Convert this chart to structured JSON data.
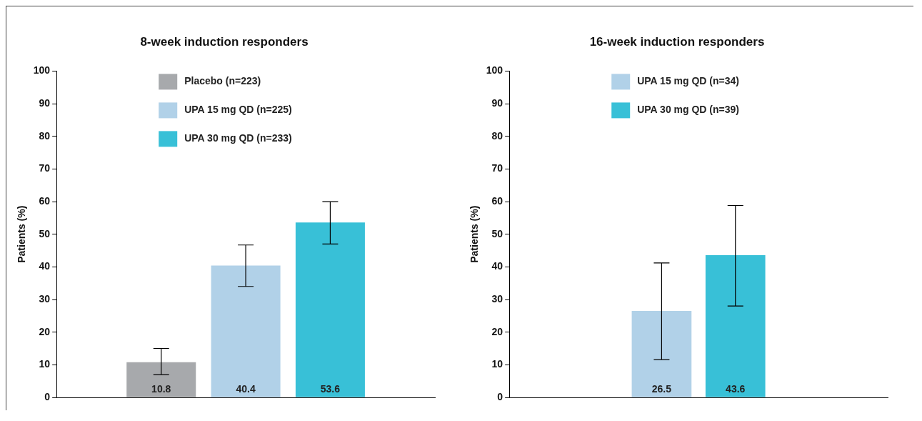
{
  "chart_data": [
    {
      "type": "bar",
      "title": "8-week induction responders",
      "ylabel": "Patients (%)",
      "categories": [
        null
      ],
      "ylim": [
        0,
        100
      ],
      "yticks": [
        0,
        10,
        20,
        30,
        40,
        50,
        60,
        70,
        80,
        90,
        100
      ],
      "legend": "top left",
      "data_labels": true,
      "series": [
        {
          "name": "Placebo (n=223)",
          "color": "#a7a9ac",
          "values": [
            10.8
          ],
          "errors": [
            [
              7,
              15
            ]
          ]
        },
        {
          "name": "UPA 15 mg QD (n=225)",
          "color": "#b1d1e8",
          "values": [
            40.4
          ],
          "errors": [
            [
              34,
              46.7
            ]
          ]
        },
        {
          "name": "UPA 30 mg QD (n=233)",
          "color": "#38c0d7",
          "values": [
            53.6
          ],
          "errors": [
            [
              47,
              60
            ]
          ]
        }
      ]
    },
    {
      "type": "bar",
      "title": "16-week induction responders",
      "ylabel": "Patients (%)",
      "categories": [
        null
      ],
      "ylim": [
        0,
        100
      ],
      "yticks": [
        0,
        10,
        20,
        30,
        40,
        50,
        60,
        70,
        80,
        90,
        100
      ],
      "legend": "top left",
      "data_labels": true,
      "series": [
        {
          "name": "UPA 15 mg QD (n=34)",
          "color": "#b1d1e8",
          "values": [
            26.5
          ],
          "errors": [
            [
              11.6,
              41.2
            ]
          ]
        },
        {
          "name": "UPA 30 mg QD (n=39)",
          "color": "#38c0d7",
          "values": [
            43.6
          ],
          "errors": [
            [
              28,
              58.8
            ]
          ]
        }
      ]
    }
  ]
}
